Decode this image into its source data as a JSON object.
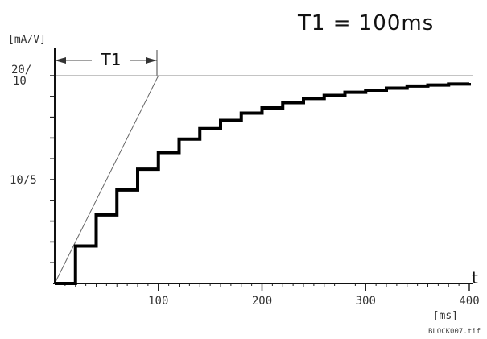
{
  "chart_data": {
    "type": "line",
    "title": "T1 = 100ms",
    "y_unit": "[mA/V]",
    "x_unit": "[ms]",
    "x_axis_symbol": "t",
    "file_label": "BLOCK007.tif",
    "xlim": [
      0,
      400
    ],
    "ylim": [
      0,
      20
    ],
    "x_ticks": [
      {
        "value": 100,
        "label": "100"
      },
      {
        "value": 200,
        "label": "200"
      },
      {
        "value": 300,
        "label": "300"
      },
      {
        "value": 400,
        "label": "400"
      }
    ],
    "y_ticks": [
      {
        "value": 10,
        "label": "10/5"
      },
      {
        "value": 20,
        "label": "20/10"
      }
    ],
    "final_value": 20,
    "time_constant_annotation": {
      "label": "T1",
      "from": 0,
      "to": 100
    },
    "tangent_line": {
      "x": [
        0,
        100
      ],
      "y": [
        0,
        20
      ]
    },
    "step_response": {
      "x": [
        0,
        20,
        40,
        60,
        80,
        100,
        120,
        140,
        160,
        180,
        200,
        220,
        240,
        260,
        280,
        300,
        320,
        340,
        360,
        380,
        400
      ],
      "y": [
        0,
        3.6,
        6.6,
        9.0,
        11.0,
        12.6,
        13.9,
        14.9,
        15.7,
        16.4,
        16.9,
        17.4,
        17.8,
        18.1,
        18.4,
        18.6,
        18.8,
        19.0,
        19.1,
        19.2,
        19.3
      ]
    }
  }
}
